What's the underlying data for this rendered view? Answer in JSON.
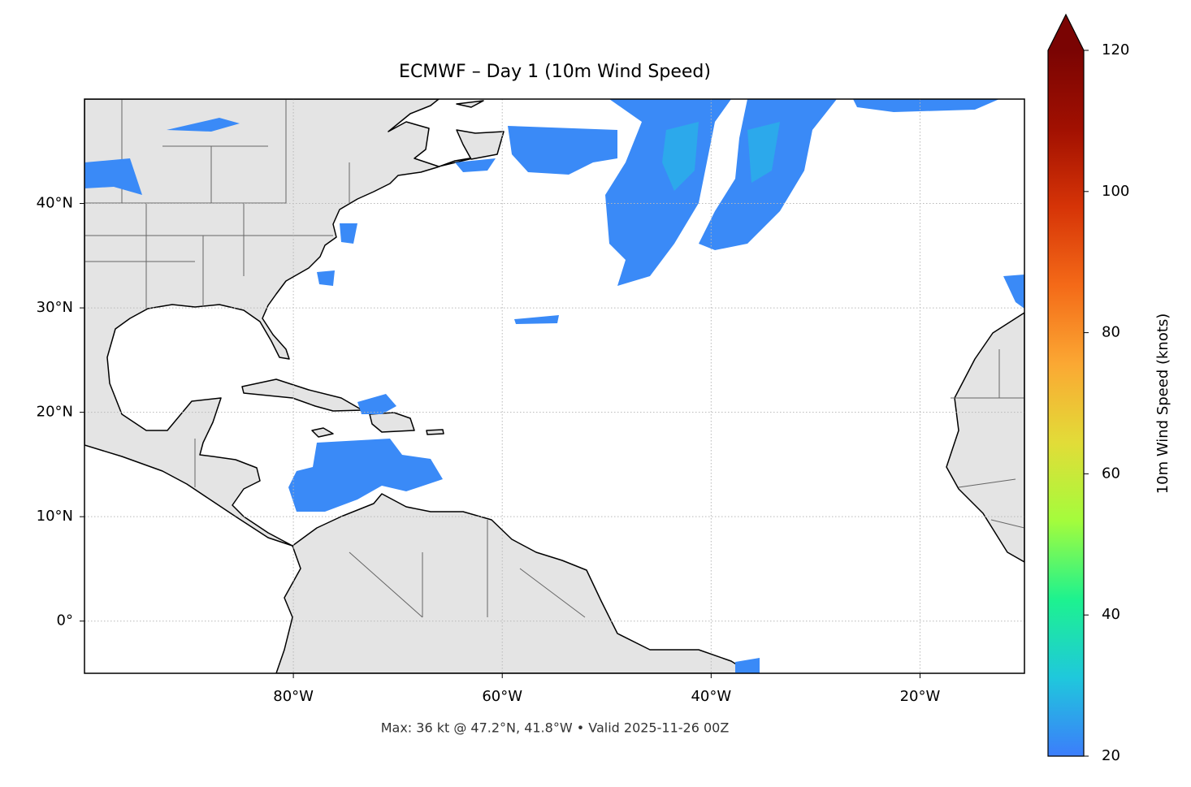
{
  "map": {
    "title": "ECMWF – Day 1 (10m Wind Speed)",
    "footer": "Max: 36 kt @ 47.2°N, 41.8°W • Valid 2025-11-26 00Z",
    "xlim": [
      -100,
      -10
    ],
    "ylim": [
      -5,
      50
    ],
    "xticks": [
      {
        "value": -80,
        "label": "80°W"
      },
      {
        "value": -60,
        "label": "60°W"
      },
      {
        "value": -40,
        "label": "40°W"
      },
      {
        "value": -20,
        "label": "20°W"
      }
    ],
    "yticks": [
      {
        "value": 40,
        "label": "40°N"
      },
      {
        "value": 30,
        "label": "30°N"
      },
      {
        "value": 20,
        "label": "20°N"
      },
      {
        "value": 10,
        "label": "10°N"
      },
      {
        "value": 0,
        "label": "0°"
      }
    ],
    "grid": true,
    "colorbar": {
      "label": "10m Wind Speed (knots)",
      "lim": [
        20,
        120
      ],
      "ticks": [
        20,
        40,
        60,
        80,
        100,
        120
      ],
      "colors": [
        "#3c7dfb",
        "#1fc8dc",
        "#1df28f",
        "#a4fc3c",
        "#e2dc38",
        "#fba833",
        "#f46a18",
        "#d63407",
        "#a11001",
        "#7a0403"
      ]
    }
  }
}
